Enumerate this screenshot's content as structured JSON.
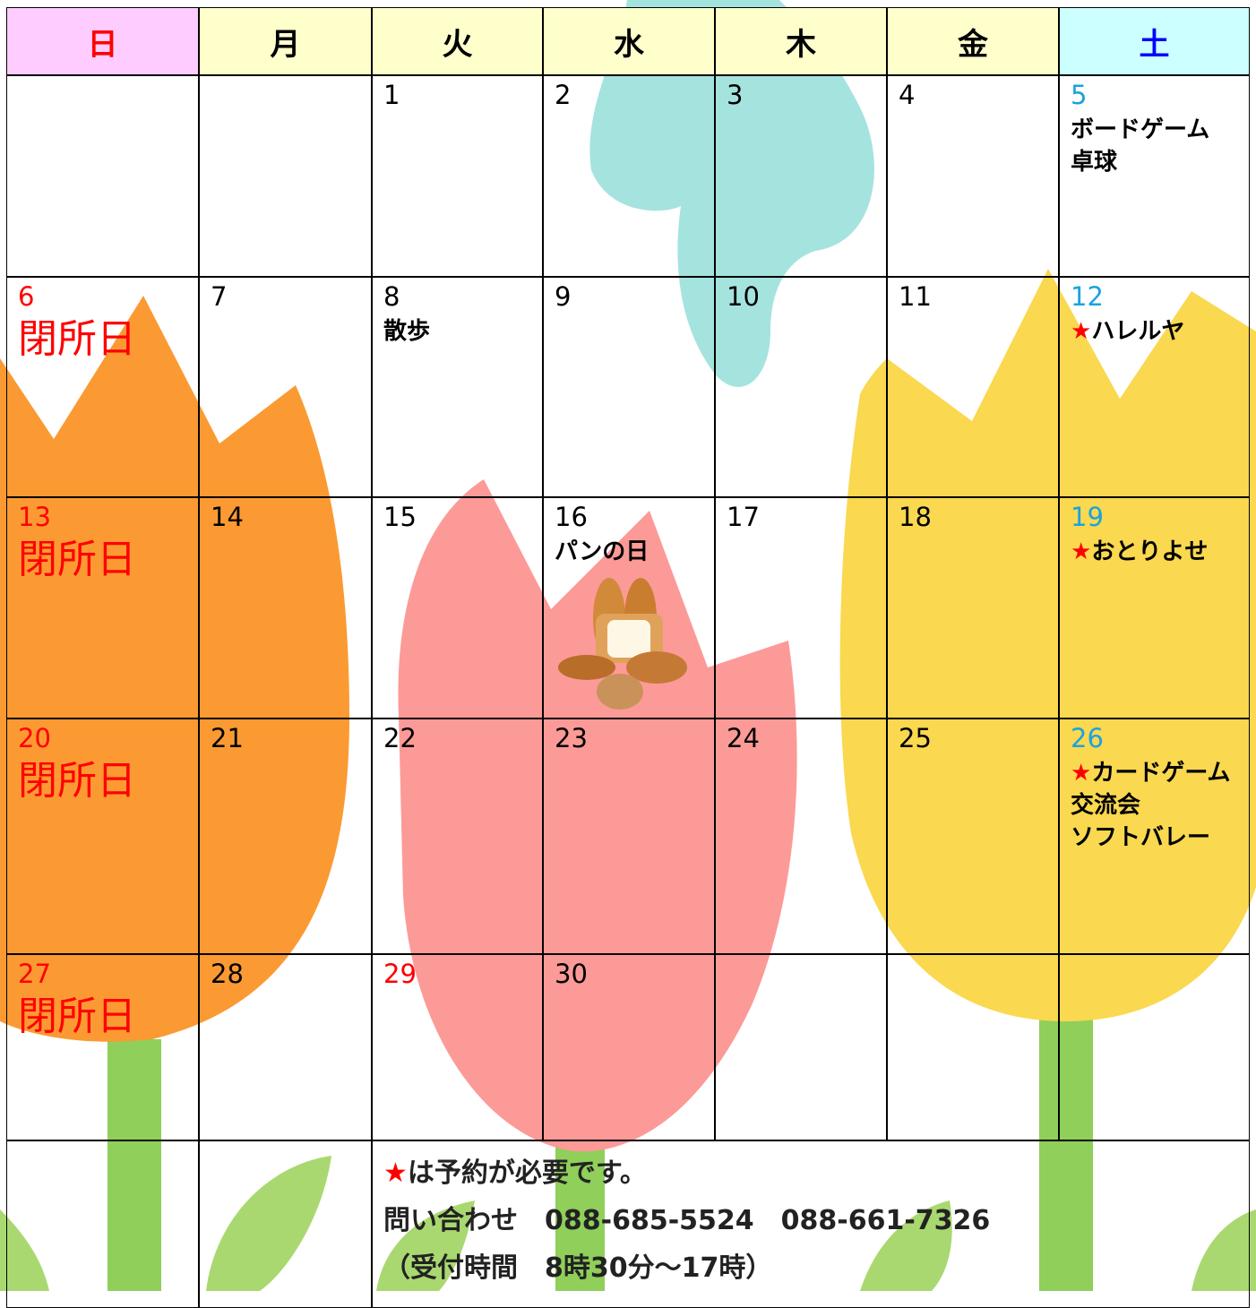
{
  "header": {
    "days": [
      "日",
      "月",
      "火",
      "水",
      "木",
      "金",
      "土"
    ]
  },
  "weeks": [
    [
      null,
      null,
      {
        "date": 1
      },
      {
        "date": 2
      },
      {
        "date": 3
      },
      {
        "date": 4
      },
      {
        "date": 5,
        "events": [
          "ボードゲーム",
          "卓球"
        ]
      }
    ],
    [
      {
        "date": 6,
        "events": [
          {
            "text": "閉所日",
            "style": "closed"
          }
        ]
      },
      {
        "date": 7
      },
      {
        "date": 8,
        "events": [
          "散歩"
        ]
      },
      {
        "date": 9
      },
      {
        "date": 10
      },
      {
        "date": 11
      },
      {
        "date": 12,
        "events": [
          {
            "mark": "★",
            "text": "ハレルヤ"
          }
        ]
      }
    ],
    [
      {
        "date": 13,
        "events": [
          {
            "text": "閉所日",
            "style": "closed"
          }
        ]
      },
      {
        "date": 14
      },
      {
        "date": 15
      },
      {
        "date": 16,
        "events": [
          "パンの日"
        ]
      },
      {
        "date": 17
      },
      {
        "date": 18
      },
      {
        "date": 19,
        "events": [
          {
            "mark": "★",
            "text": "おとりよせ"
          }
        ]
      }
    ],
    [
      {
        "date": 20,
        "events": [
          {
            "text": "閉所日",
            "style": "closed"
          }
        ]
      },
      {
        "date": 21
      },
      {
        "date": 22
      },
      {
        "date": 23
      },
      {
        "date": 24
      },
      {
        "date": 25
      },
      {
        "date": 26,
        "events": [
          {
            "mark": "★",
            "text": "カードゲーム交流会"
          },
          "ソフトバレー"
        ]
      }
    ],
    [
      {
        "date": 27,
        "events": [
          {
            "text": "閉所日",
            "style": "closed"
          }
        ]
      },
      {
        "date": 28
      },
      {
        "date": 29,
        "holiday": true
      },
      {
        "date": 30
      },
      null,
      null,
      null
    ]
  ],
  "footer": {
    "notes": [
      {
        "mark": "★",
        "text": "は予約が必要です。"
      },
      {
        "text": "問い合わせ　088-685-5524　088-661-7326"
      },
      {
        "text": "（受付時間　8時30分～17時）"
      }
    ]
  }
}
